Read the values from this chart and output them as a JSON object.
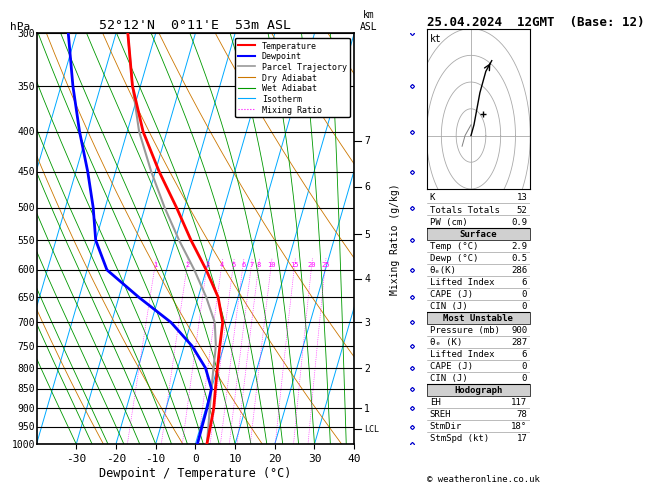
{
  "title_left": "52°12'N  0°11'E  53m ASL",
  "title_right": "25.04.2024  12GMT  (Base: 12)",
  "hpa_label": "hPa",
  "xlabel": "Dewpoint / Temperature (°C)",
  "pressure_levels": [
    300,
    350,
    400,
    450,
    500,
    550,
    600,
    650,
    700,
    750,
    800,
    850,
    900,
    950,
    1000
  ],
  "temp_ticks": [
    -30,
    -20,
    -10,
    0,
    10,
    20,
    30,
    40
  ],
  "temp_tick_labels": [
    "-30",
    "-20",
    "-10",
    "0",
    "10",
    "20",
    "30",
    "40"
  ],
  "t_min": -40,
  "t_max": 40,
  "p_min": 300,
  "p_max": 1000,
  "skew_factor": 30,
  "bg_color": "#ffffff",
  "grid_color": "#000000",
  "temp_color": "#ff0000",
  "dewp_color": "#0000ff",
  "parcel_color": "#999999",
  "isotherm_color": "#00aaff",
  "dry_adiabat_color": "#cc7700",
  "wet_adiabat_color": "#009900",
  "mixing_ratio_color": "#ff00ff",
  "temp_profile_p": [
    300,
    350,
    400,
    450,
    500,
    550,
    600,
    650,
    700,
    750,
    800,
    850,
    900,
    950,
    1000
  ],
  "temp_profile_t": [
    -47,
    -42,
    -36,
    -29,
    -22,
    -16,
    -10,
    -5,
    -2,
    -1,
    0,
    1,
    2,
    2.5,
    2.9
  ],
  "dewp_profile_t": [
    -62,
    -57,
    -52,
    -47,
    -43,
    -40,
    -35,
    -25,
    -15,
    -8,
    -3,
    0,
    0.3,
    0.4,
    0.5
  ],
  "parcel_profile_t": [
    -47,
    -42,
    -37,
    -31,
    -25,
    -19,
    -13,
    -8,
    -4,
    -2,
    -1,
    0,
    1,
    2,
    2.9
  ],
  "km_ticks_p": [
    900,
    800,
    700,
    616,
    540,
    470,
    411
  ],
  "km_ticks_labels": [
    "1",
    "2",
    "3",
    "4",
    "5",
    "6",
    "7"
  ],
  "lcl_p": 957,
  "mixing_ratio_values": [
    1,
    2,
    3,
    4,
    5,
    6,
    7,
    8,
    10,
    15,
    20,
    25
  ],
  "mixing_ratio_label_p": 590,
  "copyright": "© weatheronline.co.uk",
  "info_k": "13",
  "info_totals": "52",
  "info_pw": "0.9",
  "surf_temp": "2.9",
  "surf_dewp": "0.5",
  "surf_theta_e": "286",
  "surf_li": "6",
  "surf_cape": "0",
  "surf_cin": "0",
  "mu_pressure": "900",
  "mu_theta_e": "287",
  "mu_li": "6",
  "mu_cape": "0",
  "mu_cin": "0",
  "hodo_eh": "117",
  "hodo_sreh": "78",
  "hodo_stmdir": "18°",
  "hodo_stmspd": "17"
}
